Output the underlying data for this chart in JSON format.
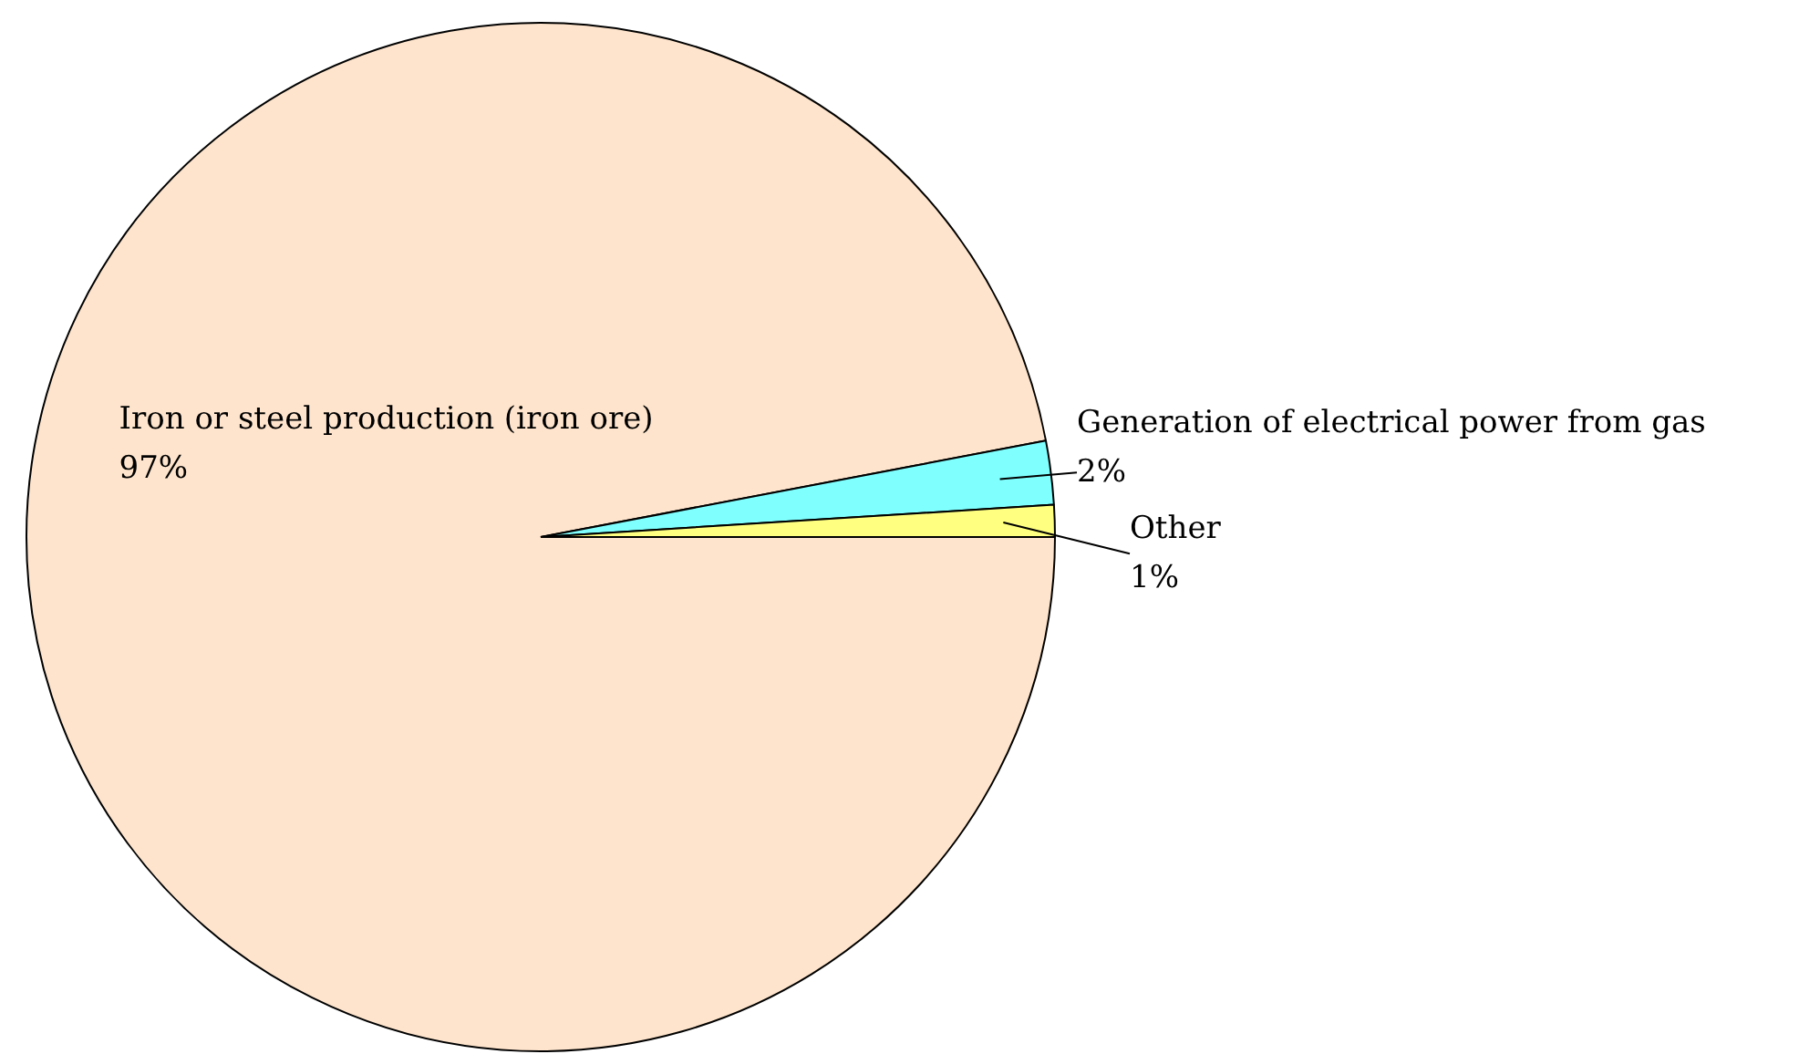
{
  "chart_data": {
    "type": "pie",
    "categories": [
      "Iron or steel production (iron ore)",
      "Generation of electrical power from gas",
      "Other"
    ],
    "values": [
      97,
      2,
      1
    ],
    "colors": [
      "#fee4cc",
      "#80ffff",
      "#ffff80"
    ],
    "value_labels": [
      "97%",
      "2%",
      "1%"
    ]
  }
}
